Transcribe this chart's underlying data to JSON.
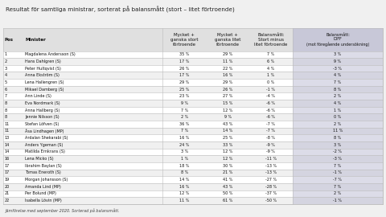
{
  "title": "Resultat för samtliga ministrar, sorterat på balansmått (stort – litet förtroende)",
  "footer": "Jämförelse med september 2020. Sorterad på balansmått.",
  "col_headers": [
    "Pos",
    "Minister",
    "Mycket +\nganska stort\nförtroende",
    "Mycket +\nganska litet\nförtroende",
    "Balansmått:\nStort minus\nlitet förtroende",
    "Balansmått:\nDIFF\n(mot föregående undersökning)"
  ],
  "rows": [
    [
      "1",
      "Magdalena Andersson (S)",
      "35 %",
      "29 %",
      "7 %",
      "3 %"
    ],
    [
      "2",
      "Hans Dahlgren (S)",
      "17 %",
      "11 %",
      "6 %",
      "9 %"
    ],
    [
      "3",
      "Peter Hultqvist (S)",
      "26 %",
      "22 %",
      "4 %",
      "-3 %"
    ],
    [
      "4",
      "Anna Ekström (S)",
      "17 %",
      "16 %",
      "1 %",
      "4 %"
    ],
    [
      "5",
      "Lena Hallengren (S)",
      "29 %",
      "29 %",
      "0 %",
      "7 %"
    ],
    [
      "6",
      "Mikael Damberg (S)",
      "25 %",
      "26 %",
      "-1 %",
      "8 %"
    ],
    [
      "7",
      "Ann Linde (S)",
      "23 %",
      "27 %",
      "-4 %",
      "2 %"
    ],
    [
      "8",
      "Eva Nordmark (S)",
      "9 %",
      "15 %",
      "-6 %",
      "4 %"
    ],
    [
      "8",
      "Anna Hallberg (S)",
      "7 %",
      "12 %",
      "-6 %",
      "1 %"
    ],
    [
      "8",
      "Jennie Nilsson (S)",
      "2 %",
      "9 %",
      "-6 %",
      "0 %"
    ],
    [
      "11",
      "Stefan Löfven (S)",
      "36 %",
      "43 %",
      "-7 %",
      "2 %"
    ],
    [
      "11",
      "Åsa Lindhagen (MP)",
      "7 %",
      "14 %",
      "-7 %",
      "11 %"
    ],
    [
      "13",
      "Ardalan Shekarabi (S)",
      "16 %",
      "25 %",
      "-8 %",
      "8 %"
    ],
    [
      "14",
      "Anders Ygeman (S)",
      "24 %",
      "33 %",
      "-9 %",
      "3 %"
    ],
    [
      "14",
      "Matilda Ernkrans (S)",
      "3 %",
      "12 %",
      "-9 %",
      "-2 %"
    ],
    [
      "16",
      "Lena Micko (S)",
      "1 %",
      "12 %",
      "-11 %",
      "-3 %"
    ],
    [
      "17",
      "Ibrahim Baylan (S)",
      "18 %",
      "30 %",
      "-13 %",
      "7 %"
    ],
    [
      "17",
      "Tomas Eneroth (S)",
      "8 %",
      "21 %",
      "-13 %",
      "-1 %"
    ],
    [
      "19",
      "Morgan Johansson (S)",
      "14 %",
      "41 %",
      "-27 %",
      "-7 %"
    ],
    [
      "20",
      "Amanda Lind (MP)",
      "16 %",
      "43 %",
      "-28 %",
      "7 %"
    ],
    [
      "21",
      "Per Bolund (MP)",
      "12 %",
      "50 %",
      "-37 %",
      "2 %"
    ],
    [
      "22",
      "Isabella Lövin (MP)",
      "11 %",
      "61 %",
      "-50 %",
      "-1 %"
    ]
  ],
  "bg_color": "#f0f0f0",
  "header_bg": "#e0e0e0",
  "last_col_bg": "#c8c8d8",
  "row_even_bg": "#ffffff",
  "row_odd_bg": "#f0f0f0",
  "last_col_even": "#dcdce8",
  "last_col_odd": "#d4d4e0",
  "border_color": "#bbbbbb",
  "text_color": "#111111",
  "title_color": "#222222",
  "footer_color": "#444444"
}
